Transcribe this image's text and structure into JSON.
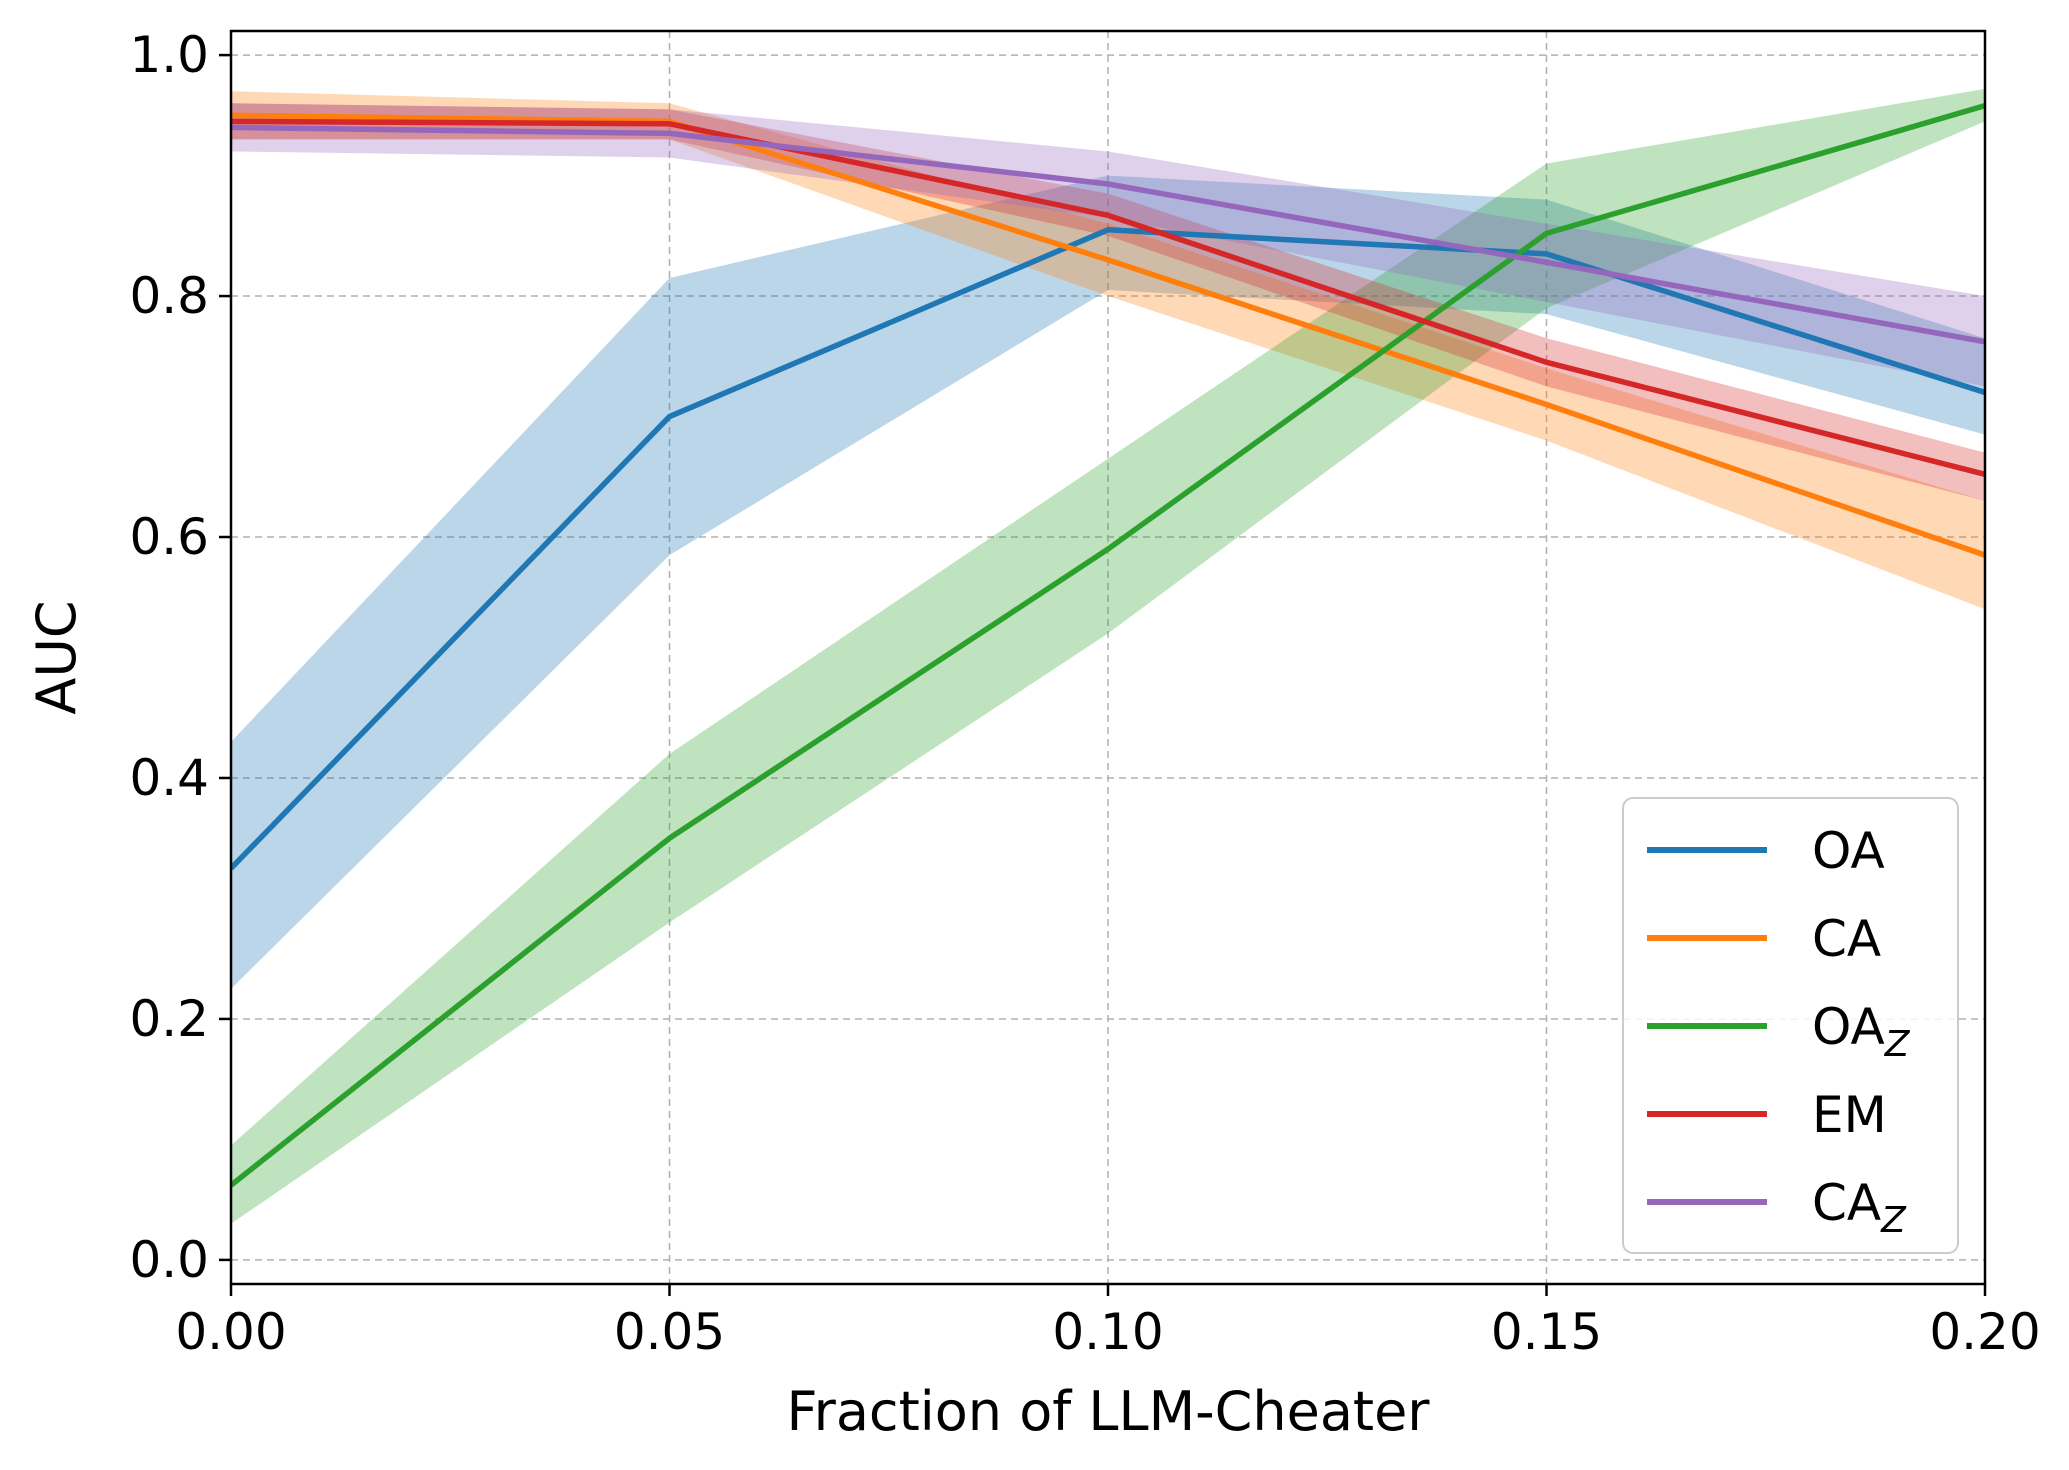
{
  "chart_data": {
    "type": "line",
    "xlabel": "Fraction of LLM-Cheater",
    "ylabel": "AUC",
    "xlim": [
      0.0,
      0.2
    ],
    "ylim": [
      -0.02,
      1.02
    ],
    "xticks": [
      0.0,
      0.05,
      0.1,
      0.15,
      0.2
    ],
    "xtick_labels": [
      "0.00",
      "0.05",
      "0.10",
      "0.15",
      "0.20"
    ],
    "yticks": [
      0.0,
      0.2,
      0.4,
      0.6,
      0.8,
      1.0
    ],
    "ytick_labels": [
      "0.0",
      "0.2",
      "0.4",
      "0.6",
      "0.8",
      "1.0"
    ],
    "grid": true,
    "legend_position": "lower-right",
    "x": [
      0.0,
      0.05,
      0.1,
      0.15,
      0.2
    ],
    "series": [
      {
        "name": "OA",
        "name_sub": "",
        "color": "#1f77b4",
        "values": [
          0.325,
          0.7,
          0.855,
          0.835,
          0.72
        ],
        "lower": [
          0.225,
          0.585,
          0.805,
          0.785,
          0.685
        ],
        "upper": [
          0.43,
          0.815,
          0.9,
          0.88,
          0.765
        ]
      },
      {
        "name": "CA",
        "name_sub": "",
        "color": "#ff7f0e",
        "values": [
          0.95,
          0.945,
          0.83,
          0.71,
          0.585
        ],
        "lower": [
          0.93,
          0.93,
          0.8,
          0.68,
          0.54
        ],
        "upper": [
          0.97,
          0.96,
          0.86,
          0.74,
          0.63
        ]
      },
      {
        "name": "OA",
        "name_sub": "Z",
        "color": "#2ca02c",
        "values": [
          0.062,
          0.35,
          0.59,
          0.852,
          0.958
        ],
        "lower": [
          0.03,
          0.28,
          0.52,
          0.79,
          0.945
        ],
        "upper": [
          0.095,
          0.42,
          0.665,
          0.91,
          0.972
        ]
      },
      {
        "name": "EM",
        "name_sub": "",
        "color": "#d62728",
        "values": [
          0.945,
          0.943,
          0.867,
          0.745,
          0.652
        ],
        "lower": [
          0.93,
          0.93,
          0.85,
          0.725,
          0.63
        ],
        "upper": [
          0.96,
          0.955,
          0.885,
          0.765,
          0.67
        ]
      },
      {
        "name": "CA",
        "name_sub": "Z",
        "color": "#9467bd",
        "values": [
          0.94,
          0.935,
          0.893,
          0.828,
          0.762
        ],
        "lower": [
          0.92,
          0.915,
          0.865,
          0.795,
          0.725
        ],
        "upper": [
          0.96,
          0.955,
          0.92,
          0.86,
          0.8
        ]
      }
    ]
  }
}
